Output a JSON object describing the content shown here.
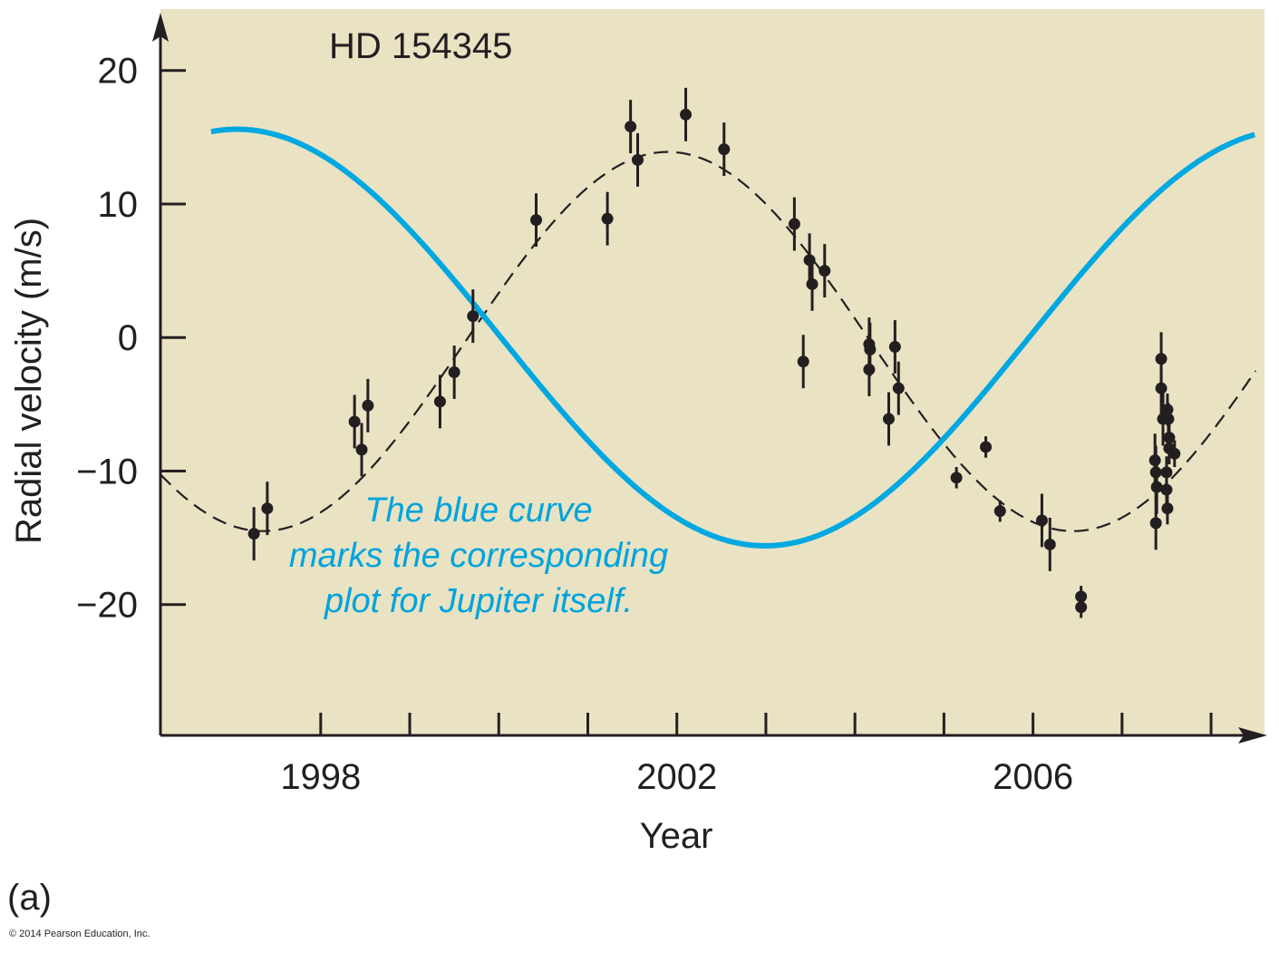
{
  "chart_data": {
    "type": "scatter",
    "title": "HD 154345",
    "xlabel": "Year",
    "ylabel": "Radial velocity (m/s)",
    "xlim": [
      1996.2,
      2008.6
    ],
    "ylim": [
      -29.8,
      24.6
    ],
    "xticks": [
      1998,
      1999,
      2000,
      2001,
      2002,
      2003,
      2004,
      2005,
      2006,
      2007,
      2008
    ],
    "xtick_labels": [
      "1998",
      "2002",
      "2006"
    ],
    "xtick_label_values": [
      1998,
      2002,
      2006
    ],
    "yticks": [
      20,
      10,
      0,
      -10,
      -20
    ],
    "ytick_labels": [
      "20",
      "10",
      "0",
      "−10",
      "−20"
    ],
    "grid": false,
    "background": "#e9e3c4",
    "points": [
      {
        "x": 1997.25,
        "y": -14.7,
        "err": 2.0
      },
      {
        "x": 1997.4,
        "y": -12.8,
        "err": 2.0
      },
      {
        "x": 1998.38,
        "y": -6.3,
        "err": 2.0
      },
      {
        "x": 1998.46,
        "y": -8.4,
        "err": 2.0
      },
      {
        "x": 1998.53,
        "y": -5.1,
        "err": 2.0
      },
      {
        "x": 1999.34,
        "y": -4.8,
        "err": 2.0
      },
      {
        "x": 1999.5,
        "y": -2.6,
        "err": 2.0
      },
      {
        "x": 1999.71,
        "y": 1.6,
        "err": 2.0
      },
      {
        "x": 2000.42,
        "y": 8.8,
        "err": 2.0
      },
      {
        "x": 2001.22,
        "y": 8.9,
        "err": 2.0
      },
      {
        "x": 2001.48,
        "y": 15.8,
        "err": 2.0
      },
      {
        "x": 2001.56,
        "y": 13.3,
        "err": 2.0
      },
      {
        "x": 2002.1,
        "y": 16.7,
        "err": 2.0
      },
      {
        "x": 2002.53,
        "y": 14.1,
        "err": 2.0
      },
      {
        "x": 2003.32,
        "y": 8.5,
        "err": 2.0
      },
      {
        "x": 2003.42,
        "y": -1.8,
        "err": 2.0
      },
      {
        "x": 2003.49,
        "y": 5.8,
        "err": 2.0
      },
      {
        "x": 2003.52,
        "y": 4.0,
        "err": 2.0
      },
      {
        "x": 2003.66,
        "y": 5.0,
        "err": 2.0
      },
      {
        "x": 2004.16,
        "y": -0.5,
        "err": 2.0
      },
      {
        "x": 2004.17,
        "y": -0.9,
        "err": 2.0
      },
      {
        "x": 2004.16,
        "y": -2.4,
        "err": 2.0
      },
      {
        "x": 2004.38,
        "y": -6.1,
        "err": 2.0
      },
      {
        "x": 2004.45,
        "y": -0.7,
        "err": 2.0
      },
      {
        "x": 2004.49,
        "y": -3.8,
        "err": 2.0
      },
      {
        "x": 2005.14,
        "y": -10.5,
        "err": 0.8
      },
      {
        "x": 2005.47,
        "y": -8.2,
        "err": 0.8
      },
      {
        "x": 2005.63,
        "y": -13.0,
        "err": 0.8
      },
      {
        "x": 2006.1,
        "y": -13.7,
        "err": 2.0
      },
      {
        "x": 2006.19,
        "y": -15.5,
        "err": 2.0
      },
      {
        "x": 2006.54,
        "y": -19.4,
        "err": 0.8
      },
      {
        "x": 2006.54,
        "y": -20.2,
        "err": 0.8
      },
      {
        "x": 2007.37,
        "y": -9.2,
        "err": 2.0
      },
      {
        "x": 2007.38,
        "y": -10.1,
        "err": 2.0
      },
      {
        "x": 2007.39,
        "y": -11.2,
        "err": 2.0
      },
      {
        "x": 2007.38,
        "y": -13.9,
        "err": 2.0
      },
      {
        "x": 2007.44,
        "y": -1.6,
        "err": 2.0
      },
      {
        "x": 2007.44,
        "y": -3.8,
        "err": 2.0
      },
      {
        "x": 2007.46,
        "y": -6.1,
        "err": 2.0
      },
      {
        "x": 2007.51,
        "y": -5.4,
        "err": 1.2
      },
      {
        "x": 2007.52,
        "y": -6.1,
        "err": 1.2
      },
      {
        "x": 2007.53,
        "y": -7.5,
        "err": 1.2
      },
      {
        "x": 2007.53,
        "y": -8.3,
        "err": 1.2
      },
      {
        "x": 2007.5,
        "y": -10.1,
        "err": 1.2
      },
      {
        "x": 2007.5,
        "y": -11.4,
        "err": 1.2
      },
      {
        "x": 2007.51,
        "y": -12.8,
        "err": 1.2
      },
      {
        "x": 2007.59,
        "y": -8.7,
        "err": 1.0
      }
    ],
    "fit_curve": {
      "style": "dashed",
      "offset": -0.3,
      "amplitude": 14.2,
      "period": 9.1,
      "peak_year": 2001.9,
      "range": [
        1996.2,
        2008.5
      ]
    },
    "jupiter_curve": {
      "color": "#00a8e1",
      "offset": 0,
      "amplitude": 15.6,
      "period": 11.86,
      "trough_year": 2002.99,
      "range": [
        1996.77,
        2008.5
      ]
    },
    "annotation": [
      "The blue curve",
      "marks the corresponding",
      "plot for Jupiter itself."
    ]
  },
  "panel_label": "(a)",
  "copyright": "© 2014 Pearson Education, Inc."
}
